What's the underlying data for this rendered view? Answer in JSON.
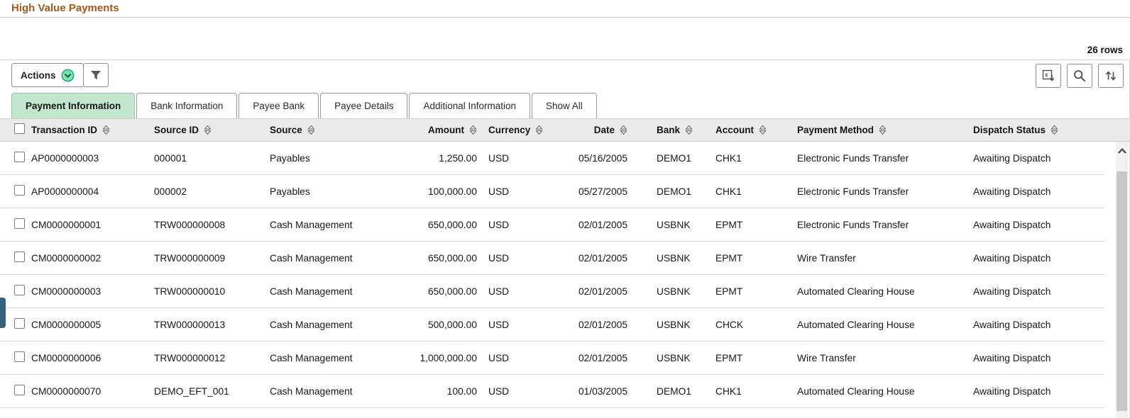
{
  "page": {
    "title": "High Value Payments",
    "row_count_label": "26 rows"
  },
  "toolbar": {
    "actions_label": "Actions",
    "icons": {
      "actions_chevron": "chevron-down-circle",
      "filter": "funnel",
      "export": "export-grid-download",
      "search": "magnifier",
      "sort": "arrows-up-down",
      "scroll_up": "chevron-up",
      "column_sort": "split-diamond"
    }
  },
  "tabs": [
    {
      "label": "Payment Information",
      "active": true
    },
    {
      "label": "Bank Information",
      "active": false
    },
    {
      "label": "Payee Bank",
      "active": false
    },
    {
      "label": "Payee Details",
      "active": false
    },
    {
      "label": "Additional Information",
      "active": false
    },
    {
      "label": "Show All",
      "active": false
    }
  ],
  "table": {
    "columns": [
      {
        "key": "transaction_id",
        "label": "Transaction ID",
        "sortable": true
      },
      {
        "key": "source_id",
        "label": "Source ID",
        "sortable": true
      },
      {
        "key": "source",
        "label": "Source",
        "sortable": true
      },
      {
        "key": "amount",
        "label": "Amount",
        "sortable": true
      },
      {
        "key": "currency",
        "label": "Currency",
        "sortable": true
      },
      {
        "key": "date",
        "label": "Date",
        "sortable": true
      },
      {
        "key": "bank",
        "label": "Bank",
        "sortable": true
      },
      {
        "key": "account",
        "label": "Account",
        "sortable": true
      },
      {
        "key": "payment_method",
        "label": "Payment Method",
        "sortable": true
      },
      {
        "key": "dispatch_status",
        "label": "Dispatch Status",
        "sortable": true
      }
    ],
    "rows": [
      {
        "transaction_id": "AP0000000003",
        "source_id": "000001",
        "source": "Payables",
        "amount": "1,250.00",
        "currency": "USD",
        "date": "05/16/2005",
        "bank": "DEMO1",
        "account": "CHK1",
        "payment_method": "Electronic Funds Transfer",
        "dispatch_status": "Awaiting Dispatch"
      },
      {
        "transaction_id": "AP0000000004",
        "source_id": "000002",
        "source": "Payables",
        "amount": "100,000.00",
        "currency": "USD",
        "date": "05/27/2005",
        "bank": "DEMO1",
        "account": "CHK1",
        "payment_method": "Electronic Funds Transfer",
        "dispatch_status": "Awaiting Dispatch"
      },
      {
        "transaction_id": "CM0000000001",
        "source_id": "TRW000000008",
        "source": "Cash Management",
        "amount": "650,000.00",
        "currency": "USD",
        "date": "02/01/2005",
        "bank": "USBNK",
        "account": "EPMT",
        "payment_method": "Electronic Funds Transfer",
        "dispatch_status": "Awaiting Dispatch"
      },
      {
        "transaction_id": "CM0000000002",
        "source_id": "TRW000000009",
        "source": "Cash Management",
        "amount": "650,000.00",
        "currency": "USD",
        "date": "02/01/2005",
        "bank": "USBNK",
        "account": "EPMT",
        "payment_method": "Wire Transfer",
        "dispatch_status": "Awaiting Dispatch"
      },
      {
        "transaction_id": "CM0000000003",
        "source_id": "TRW000000010",
        "source": "Cash Management",
        "amount": "650,000.00",
        "currency": "USD",
        "date": "02/01/2005",
        "bank": "USBNK",
        "account": "EPMT",
        "payment_method": "Automated Clearing House",
        "dispatch_status": "Awaiting Dispatch"
      },
      {
        "transaction_id": "CM0000000005",
        "source_id": "TRW000000013",
        "source": "Cash Management",
        "amount": "500,000.00",
        "currency": "USD",
        "date": "02/01/2005",
        "bank": "USBNK",
        "account": "CHCK",
        "payment_method": "Automated Clearing House",
        "dispatch_status": "Awaiting Dispatch"
      },
      {
        "transaction_id": "CM0000000006",
        "source_id": "TRW000000012",
        "source": "Cash Management",
        "amount": "1,000,000.00",
        "currency": "USD",
        "date": "02/01/2005",
        "bank": "USBNK",
        "account": "EPMT",
        "payment_method": "Wire Transfer",
        "dispatch_status": "Awaiting Dispatch"
      },
      {
        "transaction_id": "CM0000000070",
        "source_id": "DEMO_EFT_001",
        "source": "Cash Management",
        "amount": "100.00",
        "currency": "USD",
        "date": "01/03/2005",
        "bank": "DEMO1",
        "account": "CHK1",
        "payment_method": "Automated Clearing House",
        "dispatch_status": "Awaiting Dispatch"
      }
    ]
  },
  "colors": {
    "title_accent": "#a5581a",
    "active_tab_bg": "#c3e7ce",
    "active_tab_border": "#93c6a6",
    "actions_icon_green": "#76e6b2",
    "header_bg": "#ebebeb",
    "row_border": "#d8d8d8",
    "handle_blue": "#35607e",
    "scroll_thumb": "#c7c7c7"
  }
}
